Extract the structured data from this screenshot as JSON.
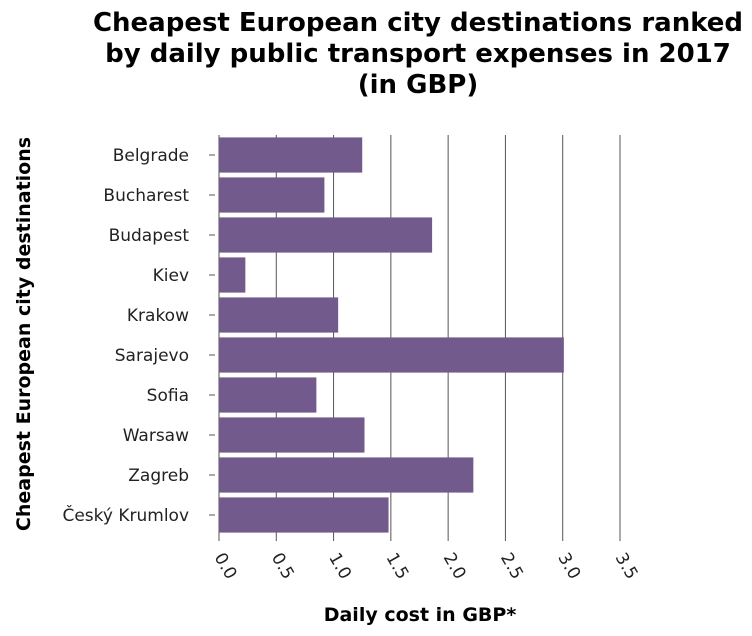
{
  "chart_data": {
    "type": "bar",
    "orientation": "horizontal",
    "title_lines": [
      "Cheapest European city destinations ranked",
      "by daily public transport expenses in 2017",
      "(in GBP)"
    ],
    "xlabel": "Daily cost in GBP*",
    "ylabel": "Cheapest European city destinations",
    "categories": [
      "Belgrade",
      "Bucharest",
      "Budapest",
      "Kiev",
      "Krakow",
      "Sarajevo",
      "Sofia",
      "Warsaw",
      "Zagreb",
      "Český Krumlov"
    ],
    "values": [
      1.25,
      0.92,
      1.86,
      0.23,
      1.04,
      3.01,
      0.85,
      1.27,
      2.22,
      1.48
    ],
    "xlim": [
      0,
      3.5
    ],
    "xticks": [
      "0.0",
      "0.5",
      "1.0",
      "1.5",
      "2.0",
      "2.5",
      "3.0",
      "3.5"
    ],
    "grid": "vertical",
    "bar_color": "#735a8c"
  }
}
